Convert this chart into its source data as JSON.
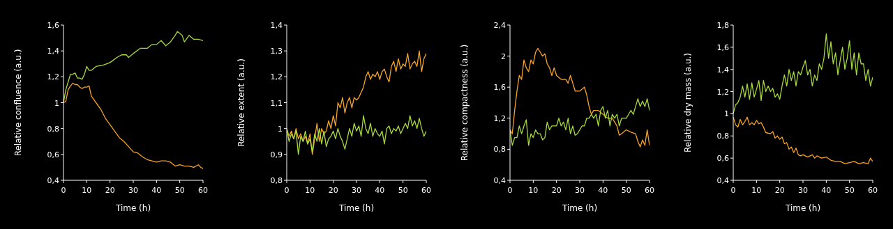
{
  "chart_data": [
    {
      "type": "line",
      "xlabel": "Time (h)",
      "ylabel": "Relative confluence (a.u.)",
      "xlim": [
        0,
        60
      ],
      "xticks": [
        0,
        10,
        20,
        30,
        40,
        50,
        60
      ],
      "ylim": [
        0.4,
        1.6
      ],
      "yticks": [
        {
          "value": 0.4,
          "label": "0,4"
        },
        {
          "value": 0.6,
          "label": "0,6"
        },
        {
          "value": 0.8,
          "label": "0,8"
        },
        {
          "value": 1,
          "label": "1"
        },
        {
          "value": 1.2,
          "label": "1,2"
        },
        {
          "value": 1.4,
          "label": "1,4"
        },
        {
          "value": 1.6,
          "label": "1,6"
        }
      ],
      "series": [
        {
          "color": "#a6d93b",
          "x": [
            0,
            1,
            2,
            3,
            4,
            5,
            6,
            7,
            8,
            9,
            10,
            11,
            12,
            14,
            17,
            20,
            23,
            25,
            27,
            28,
            30,
            33,
            36,
            38,
            40,
            42,
            44,
            46,
            48,
            49,
            51,
            52,
            54,
            56,
            58,
            60
          ],
          "values": [
            1.0,
            1.1,
            1.16,
            1.22,
            1.22,
            1.23,
            1.19,
            1.19,
            1.18,
            1.22,
            1.28,
            1.25,
            1.25,
            1.28,
            1.29,
            1.31,
            1.35,
            1.37,
            1.37,
            1.35,
            1.38,
            1.42,
            1.42,
            1.45,
            1.45,
            1.48,
            1.44,
            1.47,
            1.52,
            1.55,
            1.52,
            1.47,
            1.52,
            1.49,
            1.49,
            1.48
          ]
        },
        {
          "color": "#f7a325",
          "x": [
            0,
            1,
            2,
            3,
            4,
            5,
            6,
            7,
            8,
            9,
            10,
            11,
            12,
            14,
            16,
            18,
            20,
            22,
            24,
            26,
            28,
            30,
            32,
            34,
            36,
            38,
            40,
            42,
            44,
            46,
            48,
            50,
            52,
            54,
            56,
            58,
            59,
            60
          ],
          "values": [
            1.0,
            1.01,
            1.1,
            1.13,
            1.15,
            1.14,
            1.14,
            1.12,
            1.11,
            1.12,
            1.12,
            1.13,
            1.05,
            1.0,
            0.95,
            0.88,
            0.83,
            0.78,
            0.73,
            0.7,
            0.66,
            0.62,
            0.61,
            0.58,
            0.56,
            0.55,
            0.54,
            0.55,
            0.55,
            0.54,
            0.51,
            0.52,
            0.51,
            0.51,
            0.5,
            0.52,
            0.5,
            0.49
          ]
        }
      ]
    },
    {
      "type": "line",
      "xlabel": "Time (h)",
      "ylabel": "Relative extent (a.u.)",
      "xlim": [
        0,
        60
      ],
      "xticks": [
        0,
        10,
        20,
        30,
        40,
        50,
        60
      ],
      "ylim": [
        0.8,
        1.4
      ],
      "yticks": [
        {
          "value": 0.8,
          "label": "0,8"
        },
        {
          "value": 0.9,
          "label": "0,9"
        },
        {
          "value": 1,
          "label": "1"
        },
        {
          "value": 1.1,
          "label": "1,1"
        },
        {
          "value": 1.2,
          "label": "1,2"
        },
        {
          "value": 1.3,
          "label": "1,3"
        },
        {
          "value": 1.4,
          "label": "1,4"
        }
      ],
      "series": [
        {
          "color": "#f7a325",
          "x": [
            0,
            1,
            2,
            3,
            4,
            5,
            6,
            7,
            8,
            9,
            10,
            11,
            12,
            13,
            14,
            15,
            16,
            17,
            18,
            19,
            20,
            21,
            22,
            23,
            24,
            25,
            26,
            27,
            28,
            29,
            30,
            31,
            32,
            33,
            34,
            35,
            36,
            37,
            38,
            39,
            40,
            41,
            42,
            43,
            44,
            45,
            46,
            47,
            48,
            49,
            50,
            51,
            52,
            53,
            54,
            55,
            56,
            57,
            58,
            59,
            60
          ],
          "values": [
            1.0,
            0.97,
            0.99,
            0.96,
            1.0,
            0.96,
            0.98,
            0.95,
            0.97,
            0.94,
            0.98,
            0.9,
            0.96,
            1.02,
            0.95,
            1.0,
            0.98,
            0.99,
            1.03,
            1.0,
            1.05,
            1.01,
            1.1,
            1.08,
            1.12,
            1.06,
            1.1,
            1.12,
            1.08,
            1.12,
            1.11,
            1.12,
            1.14,
            1.16,
            1.2,
            1.22,
            1.19,
            1.21,
            1.2,
            1.22,
            1.19,
            1.22,
            1.23,
            1.2,
            1.18,
            1.24,
            1.26,
            1.22,
            1.27,
            1.23,
            1.25,
            1.24,
            1.29,
            1.23,
            1.25,
            1.26,
            1.24,
            1.3,
            1.22,
            1.27,
            1.29
          ]
        },
        {
          "color": "#a6d93b",
          "x": [
            0,
            1,
            2,
            3,
            4,
            5,
            6,
            7,
            8,
            9,
            10,
            11,
            12,
            13,
            14,
            15,
            16,
            17,
            18,
            19,
            20,
            21,
            22,
            23,
            24,
            25,
            26,
            27,
            28,
            29,
            30,
            31,
            32,
            33,
            34,
            35,
            36,
            37,
            38,
            39,
            40,
            41,
            42,
            43,
            44,
            45,
            46,
            47,
            48,
            49,
            50,
            51,
            52,
            53,
            54,
            55,
            56,
            57,
            58,
            59,
            60
          ],
          "values": [
            1.0,
            0.95,
            0.98,
            0.96,
            0.99,
            0.9,
            0.97,
            0.95,
            0.99,
            0.94,
            0.96,
            0.91,
            0.98,
            0.95,
            1.0,
            0.94,
            0.99,
            0.93,
            0.96,
            0.97,
            0.99,
            0.96,
            1.0,
            0.97,
            0.95,
            0.92,
            0.96,
            1.0,
            0.97,
            1.02,
            0.99,
            1.01,
            0.97,
            1.05,
            1.0,
            0.98,
            1.02,
            0.97,
            1.0,
            0.98,
            0.97,
            0.99,
            0.94,
            1.0,
            1.01,
            0.98,
            1.0,
            0.99,
            1.01,
            0.98,
            1.0,
            1.02,
            1.0,
            1.05,
            1.01,
            1.03,
            1.0,
            1.04,
            1.0,
            0.97,
            0.99
          ]
        }
      ]
    },
    {
      "type": "line",
      "xlabel": "Time (h)",
      "ylabel": "Relative compactness (a.u.)",
      "xlim": [
        0,
        60
      ],
      "xticks": [
        0,
        10,
        20,
        30,
        40,
        50,
        60
      ],
      "ylim": [
        0.4,
        2.4
      ],
      "yticks": [
        {
          "value": 0.4,
          "label": "0,4"
        },
        {
          "value": 0.8,
          "label": "0,8"
        },
        {
          "value": 1.2,
          "label": "1,2"
        },
        {
          "value": 1.6,
          "label": "1,6"
        },
        {
          "value": 2,
          "label": "2"
        },
        {
          "value": 2.4,
          "label": "2,4"
        }
      ],
      "series": [
        {
          "color": "#f7a325",
          "x": [
            0,
            1,
            2,
            3,
            4,
            5,
            6,
            7,
            8,
            9,
            10,
            11,
            12,
            13,
            14,
            15,
            16,
            17,
            18,
            19,
            20,
            22,
            24,
            25,
            26,
            28,
            30,
            32,
            33,
            34,
            35,
            36,
            38,
            40,
            42,
            44,
            46,
            47,
            48,
            50,
            52,
            54,
            55,
            56,
            57,
            58,
            59,
            60
          ],
          "values": [
            1.05,
            1.0,
            1.3,
            1.55,
            1.75,
            1.7,
            1.95,
            1.85,
            1.8,
            1.95,
            1.9,
            2.05,
            2.1,
            2.05,
            2.0,
            2.03,
            1.9,
            1.85,
            1.75,
            1.85,
            1.75,
            1.7,
            1.7,
            1.65,
            1.75,
            1.55,
            1.55,
            1.6,
            1.5,
            1.35,
            1.25,
            1.3,
            1.3,
            1.25,
            1.2,
            1.2,
            1.1,
            0.98,
            1.0,
            1.05,
            1.02,
            1.0,
            0.9,
            0.83,
            0.92,
            0.85,
            1.05,
            0.85
          ]
        },
        {
          "color": "#a6d93b",
          "x": [
            0,
            1,
            2,
            3,
            4,
            5,
            6,
            7,
            8,
            9,
            10,
            11,
            12,
            13,
            14,
            15,
            16,
            17,
            18,
            20,
            21,
            22,
            23,
            24,
            25,
            26,
            27,
            28,
            29,
            30,
            31,
            32,
            33,
            34,
            35,
            36,
            37,
            38,
            39,
            40,
            41,
            42,
            43,
            44,
            45,
            46,
            47,
            48,
            50,
            51,
            52,
            53,
            54,
            55,
            56,
            57,
            58,
            59,
            60
          ],
          "values": [
            1.05,
            0.85,
            0.95,
            0.95,
            1.1,
            1.0,
            1.1,
            1.18,
            0.85,
            1.0,
            0.95,
            1.05,
            1.0,
            1.0,
            0.92,
            0.95,
            1.15,
            1.05,
            1.1,
            1.1,
            1.2,
            1.1,
            1.15,
            1.05,
            1.2,
            1.0,
            1.1,
            0.98,
            1.0,
            1.05,
            1.1,
            1.1,
            1.2,
            1.2,
            1.25,
            1.2,
            1.25,
            1.1,
            1.3,
            1.35,
            1.2,
            1.3,
            1.1,
            1.25,
            1.2,
            1.25,
            1.1,
            1.2,
            1.2,
            1.25,
            1.3,
            1.25,
            1.35,
            1.45,
            1.35,
            1.42,
            1.35,
            1.45,
            1.3
          ]
        }
      ]
    },
    {
      "type": "line",
      "xlabel": "Time (h)",
      "ylabel": "Relative dry mass (a.u.)",
      "xlim": [
        0,
        60
      ],
      "xticks": [
        0,
        10,
        20,
        30,
        40,
        50,
        60
      ],
      "ylim": [
        0.4,
        1.8
      ],
      "yticks": [
        {
          "value": 0.4,
          "label": "0,4"
        },
        {
          "value": 0.6,
          "label": "0,6"
        },
        {
          "value": 0.8,
          "label": "0,8"
        },
        {
          "value": 1,
          "label": "1"
        },
        {
          "value": 1.2,
          "label": "1,2"
        },
        {
          "value": 1.4,
          "label": "1,4"
        },
        {
          "value": 1.6,
          "label": "1,6"
        },
        {
          "value": 1.8,
          "label": "1,8"
        }
      ],
      "series": [
        {
          "color": "#a6d93b",
          "x": [
            0,
            1,
            2,
            3,
            4,
            5,
            6,
            7,
            8,
            9,
            10,
            11,
            12,
            13,
            14,
            15,
            16,
            17,
            18,
            19,
            20,
            21,
            22,
            23,
            24,
            25,
            26,
            27,
            28,
            29,
            30,
            31,
            32,
            33,
            34,
            35,
            36,
            37,
            38,
            39,
            40,
            41,
            42,
            43,
            44,
            45,
            46,
            47,
            48,
            49,
            50,
            51,
            52,
            53,
            54,
            55,
            56,
            57,
            58,
            59,
            60
          ],
          "values": [
            1.0,
            1.08,
            1.1,
            1.15,
            1.25,
            1.15,
            1.27,
            1.13,
            1.28,
            1.15,
            1.22,
            1.3,
            1.12,
            1.3,
            1.2,
            1.25,
            1.2,
            1.23,
            1.15,
            1.18,
            1.13,
            1.25,
            1.35,
            1.25,
            1.4,
            1.3,
            1.38,
            1.25,
            1.38,
            1.35,
            1.42,
            1.48,
            1.35,
            1.4,
            1.25,
            1.35,
            1.3,
            1.45,
            1.4,
            1.5,
            1.72,
            1.5,
            1.65,
            1.45,
            1.55,
            1.35,
            1.48,
            1.6,
            1.4,
            1.5,
            1.66,
            1.4,
            1.55,
            1.35,
            1.55,
            1.45,
            1.45,
            1.3,
            1.4,
            1.25,
            1.33
          ]
        },
        {
          "color": "#f7a325",
          "x": [
            0,
            1,
            2,
            3,
            4,
            5,
            6,
            7,
            8,
            9,
            10,
            11,
            12,
            13,
            14,
            16,
            17,
            18,
            19,
            20,
            21,
            22,
            23,
            24,
            25,
            26,
            27,
            28,
            29,
            30,
            32,
            34,
            35,
            36,
            38,
            40,
            42,
            44,
            46,
            48,
            50,
            52,
            54,
            56,
            58,
            59,
            60
          ],
          "values": [
            0.97,
            0.9,
            0.88,
            0.95,
            0.9,
            0.93,
            0.97,
            0.9,
            0.92,
            0.9,
            0.94,
            0.91,
            0.92,
            0.88,
            0.83,
            0.82,
            0.84,
            0.78,
            0.8,
            0.77,
            0.79,
            0.73,
            0.74,
            0.68,
            0.7,
            0.65,
            0.69,
            0.63,
            0.62,
            0.63,
            0.61,
            0.63,
            0.6,
            0.62,
            0.6,
            0.61,
            0.58,
            0.57,
            0.57,
            0.55,
            0.56,
            0.57,
            0.55,
            0.56,
            0.55,
            0.6,
            0.57
          ]
        }
      ]
    }
  ]
}
